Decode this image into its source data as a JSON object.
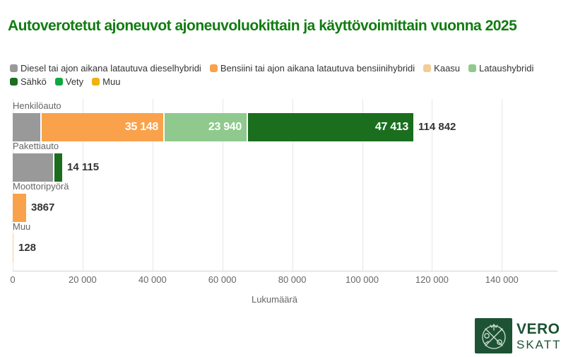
{
  "title": {
    "text": "Autoverotetut ajoneuvot ajoneuvoluokittain ja käyttövoimittain vuonna 2025",
    "color": "#117c11"
  },
  "legend": {
    "items": [
      {
        "label": "Diesel tai ajon aikana latautuva dieselhybridi",
        "color": "#999999"
      },
      {
        "label": "Bensiini tai ajon aikana latautuva bensiinihybridi",
        "color": "#f9a24b"
      },
      {
        "label": "Kaasu",
        "color": "#f3cb95"
      },
      {
        "label": "Lataushybridi",
        "color": "#8fc98e"
      },
      {
        "label": "Sähkö",
        "color": "#1a6e1e"
      },
      {
        "label": "Vety",
        "color": "#10a73e"
      },
      {
        "label": "Muu",
        "color": "#eeb211"
      }
    ]
  },
  "chart_data": {
    "type": "bar",
    "orientation": "horizontal-stacked",
    "title": "Autoverotetut ajoneuvot ajoneuvoluokittain ja käyttövoimittain vuonna 2025",
    "xlabel": "Lukumäärä",
    "ylabel": "",
    "grid": true,
    "legend_position": "top",
    "axis": {
      "min": 0,
      "max": 150000,
      "tick_interval": 20000,
      "tick_values": [
        0,
        20000,
        40000,
        60000,
        80000,
        100000,
        120000,
        140000
      ],
      "tick_labels": [
        "0",
        "20 000",
        "40 000",
        "60 000",
        "80 000",
        "100 000",
        "120 000",
        "140 000"
      ]
    },
    "categories": [
      "Henkilöauto",
      "Pakettiauto",
      "Moottoripyörä",
      "Muu"
    ],
    "rows": [
      {
        "category": "Henkilöauto",
        "total": 114842,
        "total_label": "114 842",
        "segments": [
          {
            "series": "Diesel tai ajon aikana latautuva dieselhybridi",
            "color": "#999999",
            "value": 8341,
            "estimated": true,
            "label": ""
          },
          {
            "series": "Bensiini tai ajon aikana latautuva bensiinihybridi",
            "color": "#f9a24b",
            "value": 35148,
            "label": "35 148"
          },
          {
            "series": "Lataushybridi",
            "color": "#8fc98e",
            "value": 23940,
            "label": "23 940"
          },
          {
            "series": "Sähkö",
            "color": "#1a6e1e",
            "value": 47413,
            "label": "47 413"
          }
        ]
      },
      {
        "category": "Pakettiauto",
        "total": 14115,
        "total_label": "14 115",
        "segments": [
          {
            "series": "Diesel tai ajon aikana latautuva dieselhybridi",
            "color": "#999999",
            "value": 11900,
            "estimated": true,
            "label": ""
          },
          {
            "series": "Sähkö",
            "color": "#1a6e1e",
            "value": 2215,
            "estimated": true,
            "label": ""
          }
        ]
      },
      {
        "category": "Moottoripyörä",
        "total": 3867,
        "total_label": "3867",
        "segments": [
          {
            "series": "Bensiini tai ajon aikana latautuva bensiinihybridi",
            "color": "#f9a24b",
            "value": 3867,
            "label": ""
          }
        ]
      },
      {
        "category": "Muu",
        "total": 128,
        "total_label": "128",
        "segments": [
          {
            "series": "Kaasu",
            "color": "#f3cb95",
            "value": 128,
            "estimated": true,
            "label": ""
          }
        ]
      }
    ]
  },
  "logo": {
    "line1": "VERO",
    "line2": "SKATT",
    "color": "#1d5334",
    "box_color": "#1d5334"
  }
}
